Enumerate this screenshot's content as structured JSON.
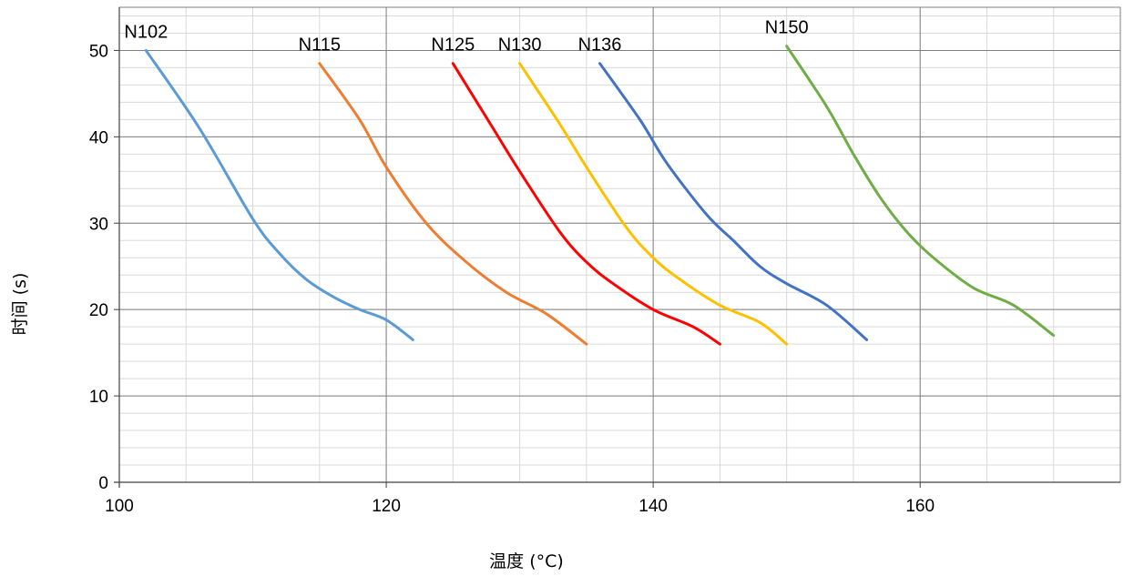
{
  "chart_data": {
    "type": "line",
    "title": "",
    "xlabel": "温度 (°C)",
    "ylabel": "时间 (s)",
    "xlim": [
      100,
      175
    ],
    "ylim": [
      0,
      55
    ],
    "x_major_ticks": [
      100,
      120,
      140,
      160
    ],
    "y_major_ticks": [
      0,
      10,
      20,
      30,
      40,
      50
    ],
    "grid": true,
    "legend": "none (series labelled at line start)",
    "series": [
      {
        "name": "N102",
        "color": "#5B9BD5",
        "points": [
          [
            102,
            50
          ],
          [
            106,
            41
          ],
          [
            110,
            30.5
          ],
          [
            112,
            26.5
          ],
          [
            114,
            23.5
          ],
          [
            116,
            21.5
          ],
          [
            118,
            20
          ],
          [
            120,
            18.8
          ],
          [
            122,
            16.5
          ]
        ]
      },
      {
        "name": "N115",
        "color": "#ED7D31",
        "points": [
          [
            115,
            48.5
          ],
          [
            118,
            42
          ],
          [
            120,
            36.5
          ],
          [
            123,
            30
          ],
          [
            126,
            25.5
          ],
          [
            129,
            22
          ],
          [
            132,
            19.5
          ],
          [
            135,
            16
          ]
        ]
      },
      {
        "name": "N125",
        "color": "#FF0000",
        "points": [
          [
            125,
            48.5
          ],
          [
            128,
            41
          ],
          [
            130,
            36
          ],
          [
            133,
            29
          ],
          [
            135,
            25.5
          ],
          [
            137,
            23
          ],
          [
            140,
            20
          ],
          [
            143,
            18
          ],
          [
            145,
            16
          ]
        ]
      },
      {
        "name": "N130",
        "color": "#FFC000",
        "points": [
          [
            130,
            48.5
          ],
          [
            133,
            41.5
          ],
          [
            135,
            36.5
          ],
          [
            138,
            29.5
          ],
          [
            140,
            26
          ],
          [
            142,
            23.5
          ],
          [
            145,
            20.5
          ],
          [
            148,
            18.5
          ],
          [
            150,
            16
          ]
        ]
      },
      {
        "name": "N136",
        "color": "#4472C4",
        "points": [
          [
            136,
            48.5
          ],
          [
            139,
            42
          ],
          [
            141,
            37
          ],
          [
            144,
            31
          ],
          [
            146,
            28
          ],
          [
            148,
            25
          ],
          [
            150,
            23
          ],
          [
            153,
            20.5
          ],
          [
            156,
            16.5
          ]
        ]
      },
      {
        "name": "N150",
        "color": "#70AD47",
        "points": [
          [
            150,
            50.5
          ],
          [
            153,
            43.5
          ],
          [
            155,
            38
          ],
          [
            157,
            33
          ],
          [
            159,
            29
          ],
          [
            161,
            26
          ],
          [
            164,
            22.5
          ],
          [
            167,
            20.5
          ],
          [
            170,
            17
          ]
        ]
      }
    ]
  }
}
